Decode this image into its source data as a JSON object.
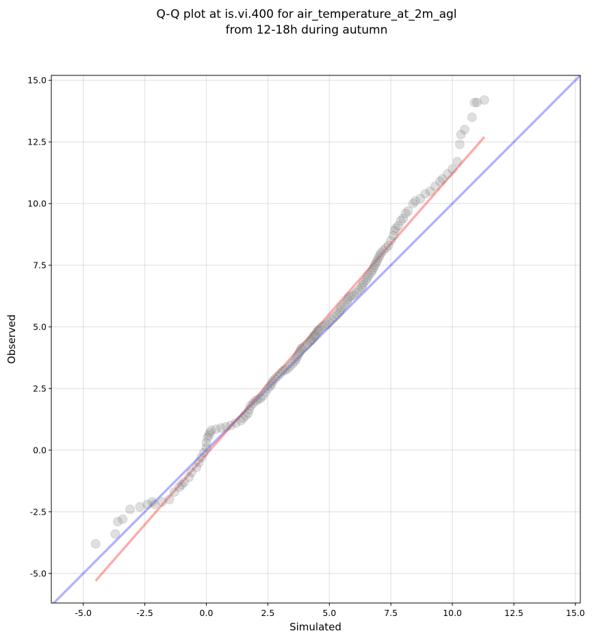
{
  "chart_data": {
    "type": "scatter",
    "title_line1": "Q-Q plot at is.vi.400 for air_temperature_at_2m_agl",
    "title_line2": "from 12-18h during autumn",
    "xlabel": "Simulated",
    "ylabel": "Observed",
    "xlim": [
      -6.3,
      15.2
    ],
    "ylim": [
      -6.2,
      15.2
    ],
    "xticks": [
      "-5.0",
      "-2.5",
      "0.0",
      "2.5",
      "5.0",
      "7.5",
      "10.0",
      "12.5",
      "15.0"
    ],
    "xtick_values": [
      -5.0,
      -2.5,
      0.0,
      2.5,
      5.0,
      7.5,
      10.0,
      12.5,
      15.0
    ],
    "yticks": [
      "-5.0",
      "-2.5",
      "0.0",
      "2.5",
      "5.0",
      "7.5",
      "10.0",
      "12.5",
      "15.0"
    ],
    "ytick_values": [
      -5.0,
      -2.5,
      0.0,
      2.5,
      5.0,
      7.5,
      10.0,
      12.5,
      15.0
    ],
    "grid": true,
    "reference_line_identity": {
      "color": "#0000ff",
      "opacity": 0.3,
      "from": [
        -6.3,
        -6.3
      ],
      "to": [
        15.2,
        15.2
      ]
    },
    "reference_line_fit": {
      "color": "#ff0000",
      "opacity": 0.33,
      "from": [
        -4.5,
        -5.3
      ],
      "to": [
        11.3,
        12.7
      ]
    },
    "point_color": "#808080",
    "points": [
      [
        -4.5,
        -3.8
      ],
      [
        -3.7,
        -3.4
      ],
      [
        -3.6,
        -2.9
      ],
      [
        -3.4,
        -2.8
      ],
      [
        -3.1,
        -2.4
      ],
      [
        -2.7,
        -2.3
      ],
      [
        -2.4,
        -2.2
      ],
      [
        -2.2,
        -2.1
      ],
      [
        -2.1,
        -2.2
      ],
      [
        -1.8,
        -2.1
      ],
      [
        -1.5,
        -2.0
      ],
      [
        -1.3,
        -1.7
      ],
      [
        -1.1,
        -1.5
      ],
      [
        -1.0,
        -1.4
      ],
      [
        -0.9,
        -1.3
      ],
      [
        -0.7,
        -1.1
      ],
      [
        -0.6,
        -0.9
      ],
      [
        -0.4,
        -0.7
      ],
      [
        -0.3,
        -0.5
      ],
      [
        -0.2,
        -0.3
      ],
      [
        -0.1,
        -0.1
      ],
      [
        0.0,
        0.1
      ],
      [
        0.0,
        0.3
      ],
      [
        0.05,
        0.5
      ],
      [
        0.1,
        0.6
      ],
      [
        0.15,
        0.7
      ],
      [
        0.2,
        0.8
      ],
      [
        0.4,
        0.85
      ],
      [
        0.6,
        0.9
      ],
      [
        0.8,
        0.95
      ],
      [
        1.0,
        1.0
      ],
      [
        1.2,
        1.1
      ],
      [
        1.4,
        1.2
      ],
      [
        1.5,
        1.3
      ],
      [
        1.6,
        1.4
      ],
      [
        1.7,
        1.5
      ],
      [
        1.75,
        1.65
      ],
      [
        1.8,
        1.8
      ],
      [
        1.9,
        1.9
      ],
      [
        2.0,
        2.0
      ],
      [
        2.1,
        2.05
      ],
      [
        2.2,
        2.1
      ],
      [
        2.3,
        2.2
      ],
      [
        2.4,
        2.35
      ],
      [
        2.5,
        2.5
      ],
      [
        2.6,
        2.6
      ],
      [
        2.65,
        2.7
      ],
      [
        2.7,
        2.8
      ],
      [
        2.8,
        2.9
      ],
      [
        2.9,
        3.0
      ],
      [
        3.0,
        3.1
      ],
      [
        3.1,
        3.2
      ],
      [
        3.2,
        3.25
      ],
      [
        3.3,
        3.3
      ],
      [
        3.4,
        3.4
      ],
      [
        3.5,
        3.5
      ],
      [
        3.6,
        3.6
      ],
      [
        3.65,
        3.7
      ],
      [
        3.7,
        3.8
      ],
      [
        3.75,
        3.9
      ],
      [
        3.8,
        4.0
      ],
      [
        3.85,
        4.1
      ],
      [
        3.9,
        4.15
      ],
      [
        4.0,
        4.2
      ],
      [
        4.1,
        4.3
      ],
      [
        4.2,
        4.4
      ],
      [
        4.25,
        4.45
      ],
      [
        4.3,
        4.5
      ],
      [
        4.35,
        4.6
      ],
      [
        4.4,
        4.65
      ],
      [
        4.45,
        4.7
      ],
      [
        4.5,
        4.8
      ],
      [
        4.55,
        4.85
      ],
      [
        4.6,
        4.9
      ],
      [
        4.7,
        5.0
      ],
      [
        4.8,
        5.05
      ],
      [
        4.9,
        5.1
      ],
      [
        5.0,
        5.2
      ],
      [
        5.1,
        5.3
      ],
      [
        5.2,
        5.4
      ],
      [
        5.3,
        5.5
      ],
      [
        5.4,
        5.6
      ],
      [
        5.45,
        5.7
      ],
      [
        5.5,
        5.8
      ],
      [
        5.6,
        5.9
      ],
      [
        5.7,
        6.0
      ],
      [
        5.75,
        6.1
      ],
      [
        5.8,
        6.2
      ],
      [
        5.9,
        6.25
      ],
      [
        6.0,
        6.3
      ],
      [
        6.1,
        6.4
      ],
      [
        6.2,
        6.5
      ],
      [
        6.3,
        6.6
      ],
      [
        6.35,
        6.7
      ],
      [
        6.4,
        6.8
      ],
      [
        6.5,
        6.9
      ],
      [
        6.55,
        7.0
      ],
      [
        6.6,
        7.1
      ],
      [
        6.7,
        7.2
      ],
      [
        6.75,
        7.3
      ],
      [
        6.8,
        7.4
      ],
      [
        6.85,
        7.5
      ],
      [
        6.9,
        7.6
      ],
      [
        6.95,
        7.7
      ],
      [
        7.0,
        7.8
      ],
      [
        7.05,
        7.9
      ],
      [
        7.1,
        8.0
      ],
      [
        7.2,
        8.1
      ],
      [
        7.3,
        8.2
      ],
      [
        7.4,
        8.3
      ],
      [
        7.5,
        8.5
      ],
      [
        7.6,
        8.7
      ],
      [
        7.65,
        8.9
      ],
      [
        7.7,
        9.0
      ],
      [
        7.8,
        9.1
      ],
      [
        7.9,
        9.3
      ],
      [
        8.0,
        9.4
      ],
      [
        8.1,
        9.6
      ],
      [
        8.2,
        9.7
      ],
      [
        8.4,
        10.0
      ],
      [
        8.5,
        10.1
      ],
      [
        8.7,
        10.2
      ],
      [
        8.9,
        10.4
      ],
      [
        9.1,
        10.5
      ],
      [
        9.3,
        10.7
      ],
      [
        9.5,
        10.9
      ],
      [
        9.6,
        11.0
      ],
      [
        9.8,
        11.2
      ],
      [
        10.0,
        11.4
      ],
      [
        10.2,
        11.7
      ],
      [
        10.3,
        12.4
      ],
      [
        10.35,
        12.8
      ],
      [
        10.5,
        13.0
      ],
      [
        10.8,
        13.5
      ],
      [
        10.9,
        14.1
      ],
      [
        11.0,
        14.1
      ],
      [
        11.3,
        14.2
      ]
    ]
  }
}
